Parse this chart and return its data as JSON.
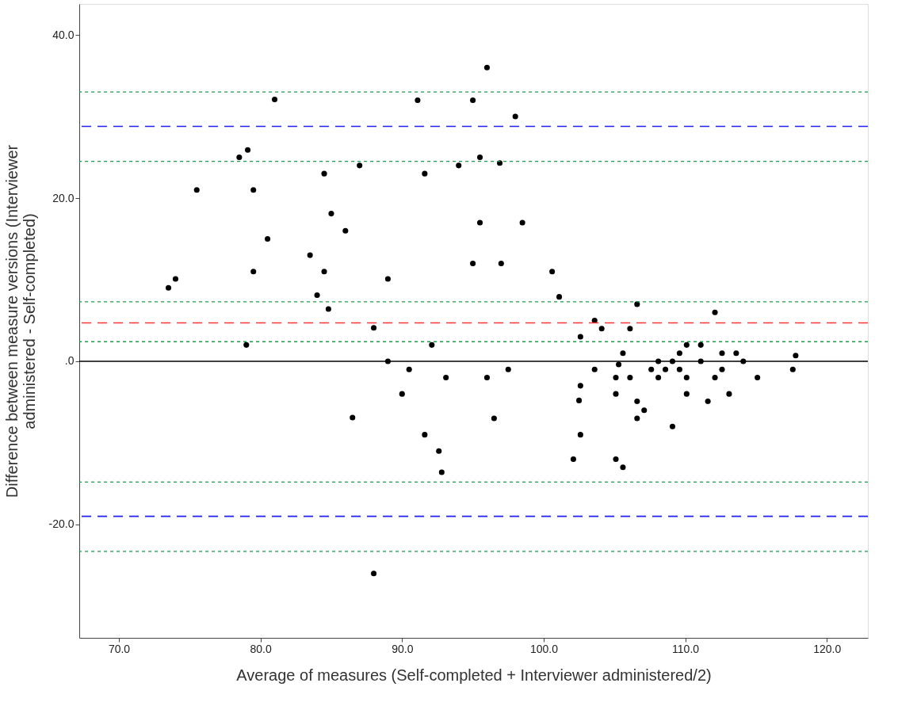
{
  "chart_data": {
    "type": "scatter",
    "xlabel": "Average of measures (Self-completed + Interviewer administered/2)",
    "ylabel": "Difference between measure versions (Interviewer\nadministered - Self-completed)",
    "xlim": [
      67.2,
      122.9
    ],
    "ylim": [
      -33.9,
      43.8
    ],
    "xticks": [
      {
        "value": 70,
        "label": "70.0"
      },
      {
        "value": 80,
        "label": "80.0"
      },
      {
        "value": 90,
        "label": "90.0"
      },
      {
        "value": 100,
        "label": "100.0"
      },
      {
        "value": 110,
        "label": "110.0"
      },
      {
        "value": 120,
        "label": "120.0"
      }
    ],
    "yticks": [
      {
        "value": -20,
        "label": "-20.0"
      },
      {
        "value": 0,
        "label": ".0"
      },
      {
        "value": 20,
        "label": "20.0"
      },
      {
        "value": 40,
        "label": "40.0"
      }
    ],
    "grid": false,
    "marker": "circle",
    "x": [
      73.5,
      74.0,
      75.5,
      78.5,
      79.1,
      79.5,
      79.5,
      79.0,
      80.5,
      81.0,
      83.5,
      84.0,
      84.5,
      84.5,
      84.8,
      85.0,
      86.0,
      86.5,
      87.0,
      88.0,
      89.0,
      89.0,
      90.5,
      90.0,
      92.1,
      93.1,
      91.6,
      92.6,
      92.8,
      88.0,
      96.0,
      96.5,
      97.5,
      91.1,
      91.6,
      96.0,
      95.0,
      98.0,
      95.5,
      94.0,
      96.9,
      95.5,
      98.5,
      95.0,
      97.0,
      100.6,
      101.1,
      102.6,
      103.6,
      104.1,
      106.6,
      106.1,
      112.1,
      103.6,
      102.6,
      102.5,
      102.6,
      102.1,
      105.1,
      105.6,
      105.6,
      105.3,
      105.1,
      105.1,
      106.1,
      106.6,
      107.1,
      106.6,
      107.6,
      108.1,
      108.1,
      108.6,
      109.1,
      109.1,
      109.6,
      109.6,
      110.1,
      110.1,
      110.1,
      111.1,
      111.1,
      111.6,
      112.1,
      112.6,
      112.6,
      113.1,
      113.6,
      114.1,
      115.1,
      117.6,
      117.8
    ],
    "series": [
      {
        "color": "#000000",
        "values": [
          9.0,
          10.1,
          21.0,
          25.0,
          25.9,
          21.0,
          11.0,
          2.0,
          15.0,
          32.1,
          13.0,
          8.1,
          11.0,
          23.0,
          6.4,
          18.1,
          16.0,
          -6.9,
          24.0,
          4.1,
          10.1,
          0,
          -1.0,
          -4.0,
          2.0,
          -2.0,
          -9.0,
          -11.0,
          -13.6,
          -26.0,
          -2.0,
          -7.0,
          -1.0,
          32.0,
          23.0,
          36.0,
          32.0,
          30.0,
          25.0,
          24.0,
          24.3,
          17.0,
          17.0,
          12.0,
          12.0,
          11.0,
          7.9,
          3.0,
          5.0,
          4.0,
          7.0,
          4.0,
          6.0,
          -1.0,
          -3.0,
          -4.8,
          -9.0,
          -12.0,
          -12.0,
          -13.0,
          1.0,
          -0.4,
          -2.0,
          -4.0,
          -2.0,
          -4.9,
          -6.0,
          -7.0,
          -1.0,
          0,
          -2.0,
          -1.0,
          0,
          -8.0,
          1.0,
          -1.0,
          2.0,
          -2.0,
          -4.0,
          2.0,
          0,
          -4.9,
          -2.0,
          1.0,
          -1.0,
          -4.0,
          1.0,
          0,
          -2.0,
          -1.0,
          0.7
        ]
      }
    ],
    "ref_lines": [
      {
        "axis": "y",
        "value": 0,
        "color": "#000000",
        "line_style": "solid"
      },
      {
        "axis": "y",
        "value": 4.7,
        "color": "#ff3333",
        "line_style": "dashed"
      },
      {
        "axis": "y",
        "value": 28.8,
        "color": "#1f1fff",
        "line_style": "dashed"
      },
      {
        "axis": "y",
        "value": -19.0,
        "color": "#1f1fff",
        "line_style": "dashed"
      },
      {
        "axis": "y",
        "value": 7.3,
        "color": "#1a9a4a",
        "line_style": "dotted"
      },
      {
        "axis": "y",
        "value": 2.4,
        "color": "#1a9a4a",
        "line_style": "dotted"
      },
      {
        "axis": "y",
        "value": 33.0,
        "color": "#1a9a4a",
        "line_style": "dotted"
      },
      {
        "axis": "y",
        "value": 24.5,
        "color": "#1a9a4a",
        "line_style": "dotted"
      },
      {
        "axis": "y",
        "value": -14.8,
        "color": "#1a9a4a",
        "line_style": "dotted"
      },
      {
        "axis": "y",
        "value": -23.3,
        "color": "#1a9a4a",
        "line_style": "dotted"
      }
    ]
  }
}
